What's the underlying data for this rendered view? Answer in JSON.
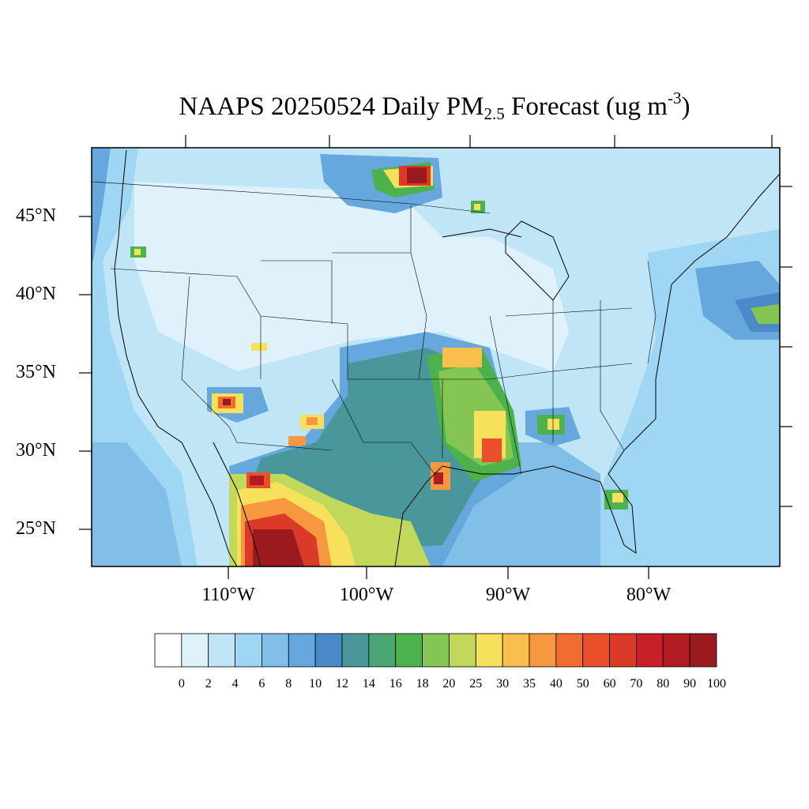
{
  "title": {
    "main": "NAAPS 20250524 Daily PM",
    "subscript": "2.5",
    "after_subscript": " Forecast (ug m",
    "superscript": "-3",
    "closing": ")"
  },
  "lat_labels": [
    "45°N",
    "40°N",
    "35°N",
    "30°N",
    "25°N"
  ],
  "lon_labels": [
    "110°W",
    "100°W",
    "90°W",
    "80°W"
  ],
  "colorbar": {
    "labels": [
      "0",
      "2",
      "4",
      "6",
      "8",
      "10",
      "12",
      "14",
      "16",
      "18",
      "20",
      "25",
      "30",
      "35",
      "40",
      "50",
      "60",
      "70",
      "80",
      "90",
      "100"
    ],
    "colors": [
      "#ffffff",
      "#dff1fb",
      "#bfe5f7",
      "#9fd6f3",
      "#82bfe8",
      "#66a7dd",
      "#4c89c9",
      "#4a979b",
      "#4aa673",
      "#4eb24c",
      "#84c553",
      "#c2d85a",
      "#f7e15c",
      "#f8bf4e",
      "#f7973f",
      "#f26b2f",
      "#e8502b",
      "#dc3a28",
      "#c81f28",
      "#b01c22",
      "#9a1a1d"
    ]
  }
}
